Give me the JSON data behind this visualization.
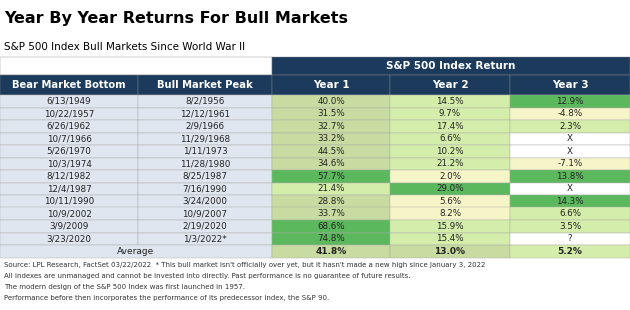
{
  "title": "Year By Year Returns For Bull Markets",
  "subtitle": "S&P 500 Index Bull Markets Since World War II",
  "header_main": "S&P 500 Index Return",
  "rows": [
    [
      "6/13/1949",
      "8/2/1956",
      "40.0%",
      "14.5%",
      "12.9%"
    ],
    [
      "10/22/1957",
      "12/12/1961",
      "31.5%",
      "9.7%",
      "-4.8%"
    ],
    [
      "6/26/1962",
      "2/9/1966",
      "32.7%",
      "17.4%",
      "2.3%"
    ],
    [
      "10/7/1966",
      "11/29/1968",
      "33.2%",
      "6.6%",
      "X"
    ],
    [
      "5/26/1970",
      "1/11/1973",
      "44.5%",
      "10.2%",
      "X"
    ],
    [
      "10/3/1974",
      "11/28/1980",
      "34.6%",
      "21.2%",
      "-7.1%"
    ],
    [
      "8/12/1982",
      "8/25/1987",
      "57.7%",
      "2.0%",
      "13.8%"
    ],
    [
      "12/4/1987",
      "7/16/1990",
      "21.4%",
      "29.0%",
      "X"
    ],
    [
      "10/11/1990",
      "3/24/2000",
      "28.8%",
      "5.6%",
      "14.3%"
    ],
    [
      "10/9/2002",
      "10/9/2007",
      "33.7%",
      "8.2%",
      "6.6%"
    ],
    [
      "3/9/2009",
      "2/19/2020",
      "68.6%",
      "15.9%",
      "3.5%"
    ],
    [
      "3/23/2020",
      "1/3/2022*",
      "74.8%",
      "15.4%",
      "?"
    ]
  ],
  "average_row": [
    "Average",
    "41.8%",
    "13.0%",
    "5.2%"
  ],
  "footnotes": [
    "Source: LPL Research, FactSet 03/22/2022  * This bull market isn't officially over yet, but it hasn't made a new high since January 3, 2022",
    "All indexes are unmanaged and cannot be invested into directly. Past performance is no guarantee of future results.",
    "The modern design of the S&P 500 Index was first launched in 1957.",
    "Performance before then incorporates the performance of its predecessor index, the S&P 90."
  ],
  "header_bg": "#1b3a5c",
  "header_fg": "#ffffff",
  "left_col_bg_even": "#e8ecf2",
  "left_col_bg_odd": "#d8dfe8",
  "year1_colors": [
    "#c8dba0",
    "#c8dba0",
    "#c8dba0",
    "#c8dba0",
    "#c8dba0",
    "#c8dba0",
    "#5cb85c",
    "#d4edaa",
    "#c8dba0",
    "#c8dba0",
    "#5cb85c",
    "#5cb85c"
  ],
  "year2_colors": [
    "#d4edaa",
    "#d4edaa",
    "#d4edaa",
    "#d4edaa",
    "#d4edaa",
    "#d4edaa",
    "#f5f5c8",
    "#5cb85c",
    "#f5f5c8",
    "#f5f5c8",
    "#d4edaa",
    "#d4edaa"
  ],
  "year3_colors": [
    "#5cb85c",
    "#f5f5c8",
    "#d4edaa",
    "#ffffff",
    "#ffffff",
    "#f5f5c8",
    "#5cb85c",
    "#ffffff",
    "#5cb85c",
    "#d4edaa",
    "#d4edaa",
    "#ffffff"
  ],
  "avg_year1_color": "#c8dba0",
  "avg_year2_color": "#c8dba0",
  "avg_year3_color": "#d4edaa"
}
